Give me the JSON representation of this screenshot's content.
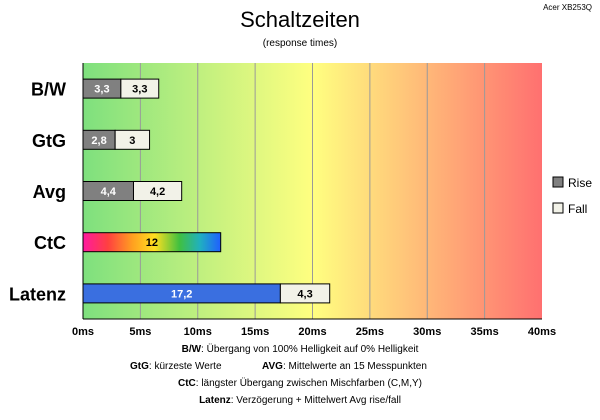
{
  "chart_data": {
    "type": "bar",
    "orientation": "horizontal",
    "stacked": true,
    "title": "Schaltzeiten",
    "subtitle": "(response times)",
    "corner_label": "Acer XB253Q",
    "categories": [
      "B/W",
      "GtG",
      "Avg",
      "CtC",
      "Latenz"
    ],
    "series": [
      {
        "name": "Rise",
        "color": "#808080",
        "values": [
          3.3,
          2.8,
          4.4,
          null,
          null
        ]
      },
      {
        "name": "Fall",
        "color": "#f2f2e8",
        "values": [
          3.3,
          3,
          4.2,
          null,
          4.3
        ]
      }
    ],
    "single_bars": [
      {
        "category": "CtC",
        "value": 12,
        "label": "12",
        "fill": "rainbow"
      },
      {
        "category": "Latenz",
        "value": 17.2,
        "label": "17,2",
        "fill": "#3a6fe0"
      }
    ],
    "value_labels": {
      "B/W": [
        "3,3",
        "3,3"
      ],
      "GtG": [
        "2,8",
        "3"
      ],
      "Avg": [
        "4,4",
        "4,2"
      ],
      "Latenz": [
        "17,2",
        "4,3"
      ]
    },
    "xlim": [
      0,
      40
    ],
    "xticks": [
      0,
      5,
      10,
      15,
      20,
      25,
      30,
      35,
      40
    ],
    "xtick_labels": [
      "0ms",
      "5ms",
      "10ms",
      "15ms",
      "20ms",
      "25ms",
      "30ms",
      "35ms",
      "40ms"
    ],
    "background_gradient": [
      "#7ee07e",
      "#ffff80",
      "#ff7070"
    ],
    "grid": true,
    "legend": {
      "position": "right",
      "entries": [
        "Rise",
        "Fall"
      ]
    },
    "footnotes": {
      "line1": {
        "label": "B/W",
        "text": ":  Übergang von 100% Helligkeit auf 0% Helligkeit"
      },
      "line2a": {
        "label": "GtG",
        "text": ": kürzeste  Werte"
      },
      "line2b": {
        "label": "AVG",
        "text": ": Mittelwerte  an 15 Messpunkten"
      },
      "line3": {
        "label": "CtC",
        "text": ": längster Übergang  zwischen Mischfarben (C,M,Y)"
      },
      "line4": {
        "label": "Latenz",
        "text": ": Verzögerung  + Mittelwert Avg rise/fall"
      }
    }
  }
}
